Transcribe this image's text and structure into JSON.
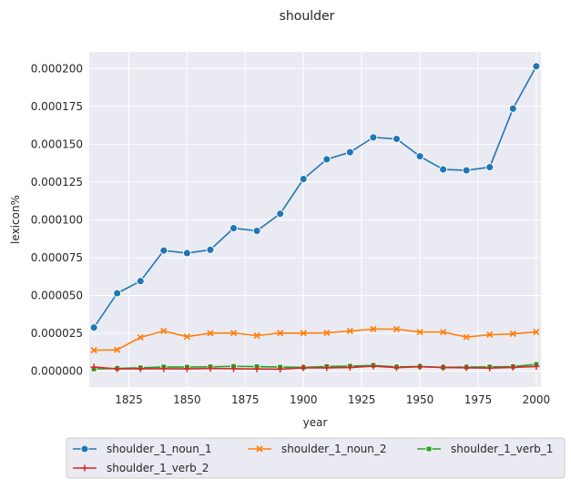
{
  "chart_data": {
    "type": "line",
    "title": "shoulder",
    "xlabel": "year",
    "ylabel": "lexicon%",
    "xlim": [
      1808,
      2002
    ],
    "ylim": [
      -1.05e-05,
      0.000211
    ],
    "grid": true,
    "legend_position": "bottom",
    "x_ticks": [
      1825,
      1850,
      1875,
      1900,
      1925,
      1950,
      1975,
      2000
    ],
    "x_tick_labels": [
      "1825",
      "1850",
      "1875",
      "1900",
      "1925",
      "1950",
      "1975",
      "2000"
    ],
    "y_ticks": [
      0,
      2.5e-05,
      5e-05,
      7.5e-05,
      0.0001,
      0.000125,
      0.00015,
      0.000175,
      0.0002
    ],
    "y_tick_labels": [
      "0.000000",
      "0.000025",
      "0.000050",
      "0.000075",
      "0.000100",
      "0.000125",
      "0.000150",
      "0.000175",
      "0.000200"
    ],
    "x": [
      1810,
      1820,
      1830,
      1840,
      1850,
      1860,
      1870,
      1880,
      1890,
      1900,
      1910,
      1920,
      1930,
      1940,
      1950,
      1960,
      1970,
      1980,
      1990,
      2000
    ],
    "series": [
      {
        "name": "shoulder_1_noun_1",
        "color": "#1f77b4",
        "marker": "circle",
        "values": [
          2.88e-05,
          5.15e-05,
          5.95e-05,
          7.97e-05,
          7.8e-05,
          8.02e-05,
          9.45e-05,
          9.27e-05,
          0.000104,
          0.000127,
          0.00014,
          0.0001447,
          0.0001545,
          0.0001535,
          0.000142,
          0.0001333,
          0.0001327,
          0.0001348,
          0.0001735,
          0.0002015
        ]
      },
      {
        "name": "shoulder_1_noun_2",
        "color": "#ff7f0e",
        "marker": "x",
        "values": [
          1.38e-05,
          1.41e-05,
          2.23e-05,
          2.65e-05,
          2.28e-05,
          2.51e-05,
          2.52e-05,
          2.35e-05,
          2.52e-05,
          2.51e-05,
          2.53e-05,
          2.65e-05,
          2.78e-05,
          2.78e-05,
          2.58e-05,
          2.58e-05,
          2.25e-05,
          2.41e-05,
          2.47e-05,
          2.59e-05
        ]
      },
      {
        "name": "shoulder_1_verb_1",
        "color": "#2ca02c",
        "marker": "square",
        "values": [
          1.4e-06,
          1.8e-06,
          2.2e-06,
          2.8e-06,
          2.7e-06,
          2.9e-06,
          3.2e-06,
          3e-06,
          2.7e-06,
          2.5e-06,
          3.1e-06,
          3.3e-06,
          3.8e-06,
          2.8e-06,
          3.1e-06,
          2.5e-06,
          2.7e-06,
          2.8e-06,
          3e-06,
          4.5e-06
        ]
      },
      {
        "name": "shoulder_1_verb_2",
        "color": "#d62728",
        "marker": "plus",
        "values": [
          2.7e-06,
          1.5e-06,
          1.6e-06,
          1.6e-06,
          1.5e-06,
          1.8e-06,
          1.6e-06,
          1.4e-06,
          1.3e-06,
          2.2e-06,
          2.2e-06,
          2.4e-06,
          3.3e-06,
          2.3e-06,
          2.9e-06,
          2.4e-06,
          2.2e-06,
          2e-06,
          2.5e-06,
          3.1e-06
        ]
      }
    ]
  }
}
